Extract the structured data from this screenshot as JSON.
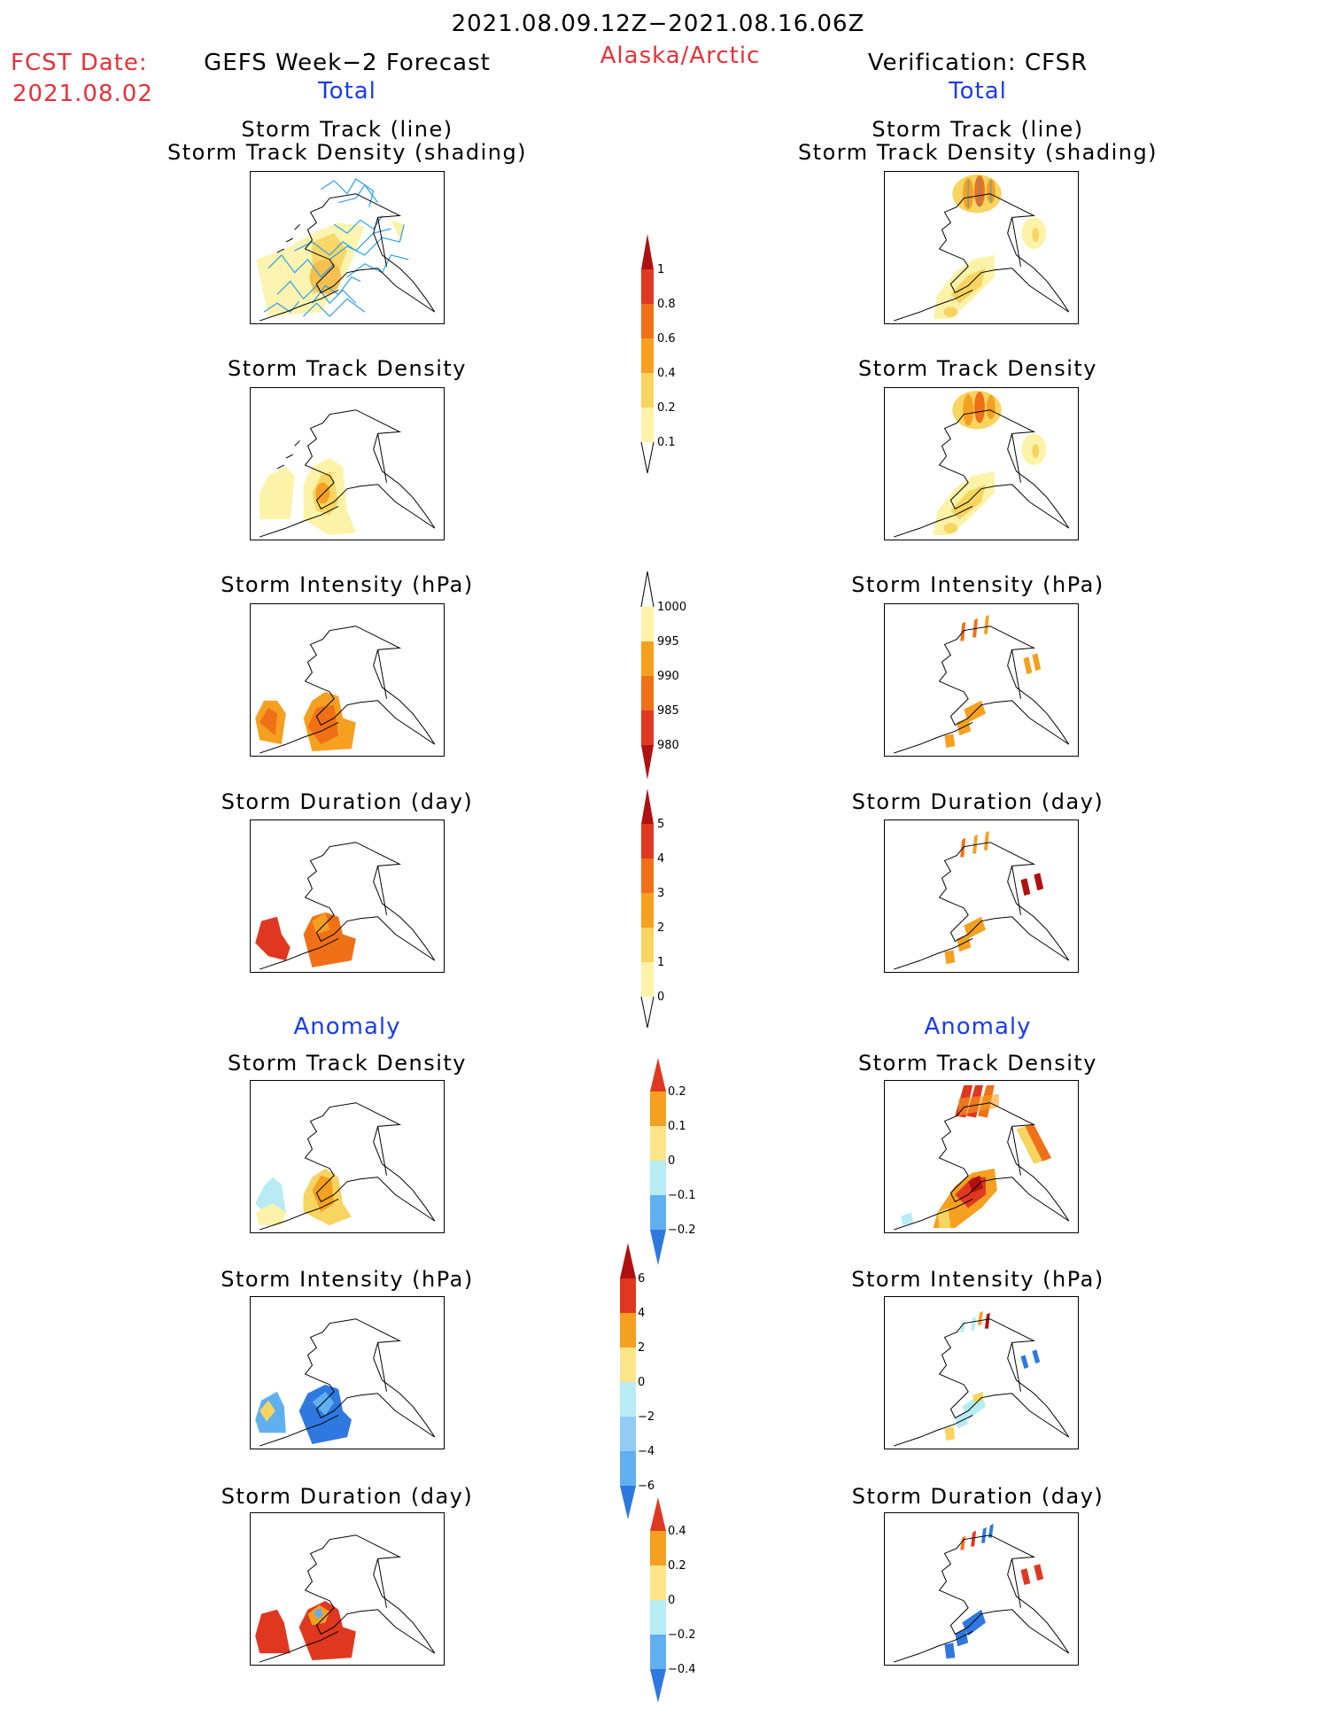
{
  "header": {
    "date_range": "2021.08.09.12Z−2021.08.16.06Z",
    "fcst_label": "FCST Date:",
    "fcst_date": "2021.08.02",
    "region": "Alaska/Arctic",
    "left_title": "GEFS Week−2 Forecast",
    "right_title": "Verification: CFSR",
    "total_label": "Total",
    "anomaly_label": "Anomaly"
  },
  "panel_titles": {
    "track_line": "Storm Track (line)",
    "track_shading": "Storm Track Density (shading)",
    "density": "Storm Track Density",
    "intensity": "Storm Intensity (hPa)",
    "duration": "Storm Duration (day)"
  },
  "colorbars": [
    {
      "name": "density-total",
      "ticks": [
        "1",
        "0.8",
        "0.6",
        "0.4",
        "0.2",
        "0.1"
      ]
    },
    {
      "name": "intensity-total",
      "ticks": [
        "1000",
        "995",
        "990",
        "985",
        "980"
      ]
    },
    {
      "name": "duration-total",
      "ticks": [
        "5",
        "4",
        "3",
        "2",
        "1",
        "0"
      ]
    },
    {
      "name": "density-anomaly",
      "ticks": [
        "0.2",
        "0.1",
        "0",
        "−0.1",
        "−0.2"
      ]
    },
    {
      "name": "intensity-anomaly",
      "ticks": [
        "6",
        "4",
        "2",
        "0",
        "−2",
        "−4",
        "−6"
      ]
    },
    {
      "name": "duration-anomaly",
      "ticks": [
        "0.4",
        "0.2",
        "0",
        "−0.2",
        "−0.4"
      ]
    }
  ],
  "colors": {
    "header_red": "#e8303a",
    "label_blue": "#1a3cf0",
    "track_line": "#2aa0e8",
    "pale_yellow": "#fdf3a8",
    "yellow": "#f8d460",
    "orange": "#f5a020",
    "dark_orange": "#f07018",
    "red": "#e03820",
    "dark_red": "#b01010",
    "light_blue": "#b8ecf4",
    "mid_blue": "#60b0f0",
    "blue": "#2e78e0"
  }
}
